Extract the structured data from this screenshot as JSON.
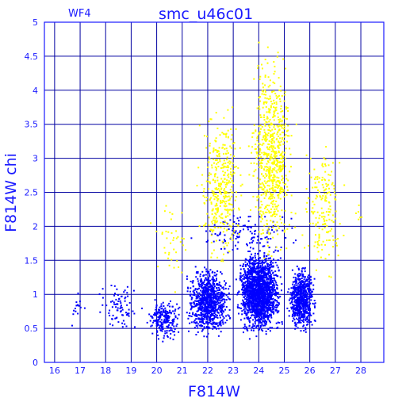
{
  "chart_data": {
    "type": "scatter",
    "title": "smc_u46c01",
    "panel_label": "WF4",
    "xlabel": "F814W",
    "ylabel": "F814W chi",
    "xlim": [
      15.6,
      28.9
    ],
    "ylim": [
      0,
      5
    ],
    "x_ticks": [
      16,
      17,
      18,
      19,
      20,
      21,
      22,
      23,
      24,
      25,
      26,
      27,
      28
    ],
    "y_ticks": [
      0,
      0.5,
      1,
      1.5,
      2,
      2.5,
      3,
      3.5,
      4,
      4.5,
      5
    ],
    "y_tick_labels": [
      "0",
      "0.5",
      "1",
      "1.5",
      "2",
      "2.5",
      "3",
      "3.5",
      "4",
      "4.5",
      "5"
    ],
    "grid": true,
    "colors": {
      "axis": "#1a1aff",
      "grid": "#0000a0",
      "good": "#0000ff",
      "rejected": "#ffff00"
    },
    "series": [
      {
        "color": "#0000ff",
        "description_density": [
          {
            "x": [
              16.2,
              17.5
            ],
            "y": [
              0.4,
              1.2
            ],
            "n": 15
          },
          {
            "x": [
              17.5,
              19.5
            ],
            "y": [
              0.4,
              1.25
            ],
            "n": 80
          },
          {
            "x": [
              19.5,
              21.0
            ],
            "y": [
              0.3,
              1.0
            ],
            "n": 220
          },
          {
            "x": [
              21.0,
              23.0
            ],
            "y": [
              0.3,
              1.5
            ],
            "n": 900
          },
          {
            "x": [
              23.0,
              25.0
            ],
            "y": [
              0.3,
              1.8
            ],
            "n": 1800
          },
          {
            "x": [
              25.0,
              26.3
            ],
            "y": [
              0.4,
              1.5
            ],
            "n": 700
          },
          {
            "x": [
              21.0,
              26.0
            ],
            "y": [
              1.5,
              2.3
            ],
            "n": 120
          }
        ]
      },
      {
        "color": "#ffff00",
        "description_density": [
          {
            "x": [
              19.5,
              21.5
            ],
            "y": [
              1.0,
              2.5
            ],
            "n": 40
          },
          {
            "x": [
              21.5,
              23.5
            ],
            "y": [
              1.2,
              4.0
            ],
            "n": 380
          },
          {
            "x": [
              23.5,
              25.5
            ],
            "y": [
              1.2,
              4.9
            ],
            "n": 700
          },
          {
            "x": [
              25.5,
              27.5
            ],
            "y": [
              1.0,
              3.5
            ],
            "n": 180
          },
          {
            "x": [
              27.5,
              28.5
            ],
            "y": [
              2.0,
              2.5
            ],
            "n": 6
          }
        ]
      }
    ]
  }
}
